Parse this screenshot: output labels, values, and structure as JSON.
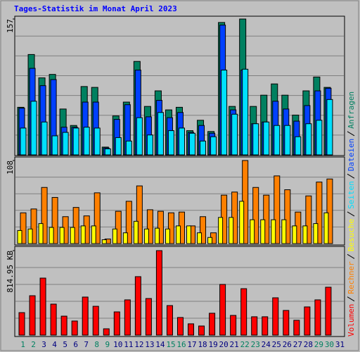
{
  "chart_data": [
    {
      "type": "bar",
      "title": "Tages-Statistik im Monat April 2023",
      "ylim": [
        0,
        157
      ],
      "yticks": [
        157
      ],
      "series": [
        {
          "name": "Anfragen",
          "color": "#008060",
          "values": [
            55,
            116,
            89,
            93,
            53,
            34,
            79,
            78,
            9,
            45,
            61,
            108,
            56,
            74,
            52,
            55,
            28,
            40,
            27,
            153,
            56,
            157,
            56,
            69,
            82,
            69,
            46,
            74,
            90,
            78,
            0
          ]
        },
        {
          "name": "Dateien",
          "color": "#0040ff",
          "values": [
            54,
            100,
            80,
            87,
            32,
            32,
            61,
            61,
            8,
            41,
            58,
            98,
            44,
            63,
            43,
            49,
            26,
            34,
            25,
            150,
            52,
            98,
            36,
            38,
            62,
            53,
            39,
            57,
            74,
            77,
            0
          ]
        },
        {
          "name": "Seiten",
          "color": "#00e0ff",
          "values": [
            31,
            62,
            38,
            22,
            26,
            31,
            32,
            31,
            7,
            20,
            16,
            43,
            23,
            49,
            28,
            31,
            25,
            16,
            21,
            98,
            47,
            99,
            36,
            38,
            34,
            34,
            21,
            36,
            40,
            64,
            0
          ]
        }
      ]
    },
    {
      "type": "bar",
      "ylim": [
        0,
        108
      ],
      "yticks": [
        108
      ],
      "series": [
        {
          "name": "Besuche",
          "color": "#ffff00",
          "values": [
            17,
            19,
            26,
            21,
            21,
            21,
            23,
            23,
            5,
            19,
            14,
            29,
            19,
            20,
            19,
            23,
            23,
            14,
            8,
            34,
            34,
            55,
            31,
            31,
            31,
            31,
            23,
            23,
            26,
            40,
            0
          ]
        },
        {
          "name": "Rechner",
          "color": "#ff8000",
          "values": [
            40,
            45,
            73,
            60,
            35,
            47,
            36,
            66,
            6,
            42,
            55,
            75,
            44,
            42,
            40,
            41,
            23,
            35,
            14,
            63,
            67,
            108,
            73,
            63,
            88,
            70,
            41,
            62,
            80,
            84,
            0
          ]
        }
      ]
    },
    {
      "type": "bar",
      "ylim": [
        0,
        814.95
      ],
      "yticks": [
        {
          "value": 814.95,
          "label": "814.95 KB"
        }
      ],
      "categories": [
        "1",
        "2",
        "3",
        "4",
        "5",
        "6",
        "7",
        "8",
        "9",
        "10",
        "11",
        "12",
        "13",
        "14",
        "15",
        "16",
        "17",
        "18",
        "19",
        "20",
        "21",
        "22",
        "23",
        "24",
        "25",
        "26",
        "27",
        "28",
        "29",
        "30",
        "31"
      ],
      "category_colors": [
        "#008060",
        "#008060",
        "#000080",
        "#000080",
        "#000080",
        "#000080",
        "#000080",
        "#008060",
        "#008060",
        "#000080",
        "#000080",
        "#000080",
        "#000080",
        "#000080",
        "#008060",
        "#008060",
        "#000080",
        "#000080",
        "#000080",
        "#000080",
        "#000080",
        "#008060",
        "#008060",
        "#000080",
        "#000080",
        "#000080",
        "#000080",
        "#000080",
        "#008060",
        "#008060",
        "#000080"
      ],
      "series": [
        {
          "name": "Volumen",
          "color": "#ff0000",
          "values": [
            217,
            380,
            550,
            299,
            183,
            136,
            367,
            278,
            61,
            224,
            340,
            564,
            353,
            815,
            285,
            170,
            109,
            88,
            211,
            489,
            190,
            448,
            177,
            177,
            360,
            238,
            143,
            272,
            340,
            462,
            0
          ]
        }
      ]
    }
  ]
}
